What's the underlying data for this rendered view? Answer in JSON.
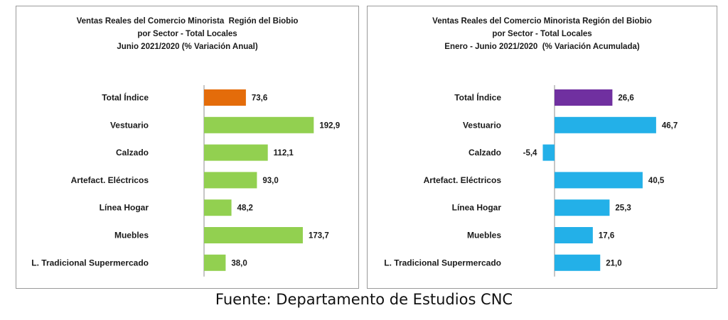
{
  "source_note": "Fuente: Departamento de Estudios CNC",
  "chart_data": [
    {
      "type": "bar",
      "orientation": "horizontal",
      "title_lines": [
        "Ventas Reales del Comercio Minorista  Región del Biobio",
        "por Sector - Total Locales",
        "Junio 2021/2020 (% Variación Anual)"
      ],
      "categories": [
        "Total Índice",
        "Vestuario",
        "Calzado",
        "Artefact. Eléctricos",
        "Línea Hogar",
        "Muebles",
        "L. Tradicional Supermercado"
      ],
      "values": [
        73.6,
        192.9,
        112.1,
        93.0,
        48.2,
        173.7,
        38.0
      ],
      "value_labels": [
        "73,6",
        "192,9",
        "112,1",
        "93,0",
        "48,2",
        "173,7",
        "38,0"
      ],
      "colors": [
        "#E46C0A",
        "#92D050",
        "#92D050",
        "#92D050",
        "#92D050",
        "#92D050",
        "#92D050"
      ],
      "xlim": [
        0,
        200
      ],
      "grid": false,
      "legend": "none"
    },
    {
      "type": "bar",
      "orientation": "horizontal",
      "title_lines": [
        "Ventas Reales del Comercio Minorista Región del Biobio",
        "por Sector - Total Locales",
        "Enero - Junio 2021/2020  (% Variación Acumulada)"
      ],
      "categories": [
        "Total Índice",
        "Vestuario",
        "Calzado",
        "Artefact. Eléctricos",
        "Línea Hogar",
        "Muebles",
        "L. Tradicional Supermercado"
      ],
      "values": [
        26.6,
        46.7,
        -5.4,
        40.5,
        25.3,
        17.6,
        21.0
      ],
      "value_labels": [
        "26,6",
        "46,7",
        "-5,4",
        "40,5",
        "25,3",
        "17,6",
        "21,0"
      ],
      "colors": [
        "#7030A0",
        "#23B0E8",
        "#23B0E8",
        "#23B0E8",
        "#23B0E8",
        "#23B0E8",
        "#23B0E8"
      ],
      "xlim": [
        -6,
        50
      ],
      "grid": false,
      "legend": "none"
    }
  ]
}
